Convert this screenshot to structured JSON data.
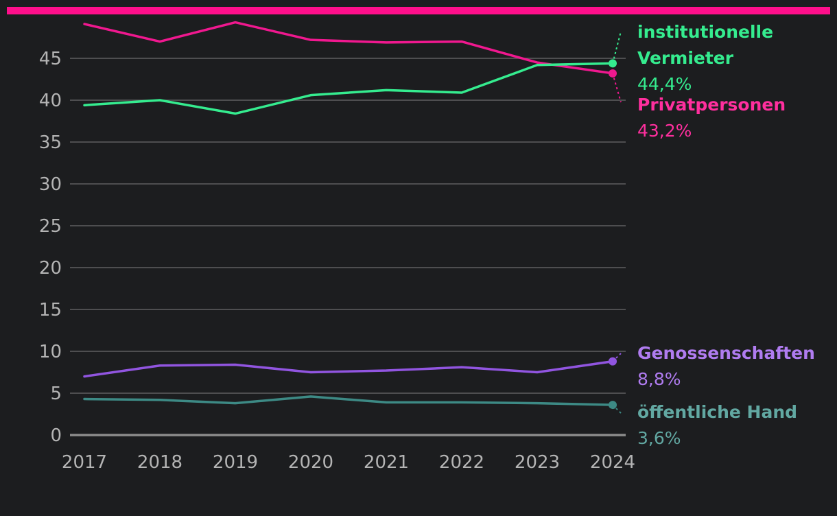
{
  "chart_data": {
    "type": "line",
    "accent_bar_color": "#ff0f8b",
    "x": [
      "2017",
      "2018",
      "2019",
      "2020",
      "2021",
      "2022",
      "2023",
      "2024"
    ],
    "ylim": [
      0,
      49
    ],
    "yticks": [
      "0",
      "5",
      "10",
      "15",
      "20",
      "25",
      "30",
      "35",
      "40",
      "45"
    ],
    "grid": true,
    "series": [
      {
        "key": "privat",
        "name": "Privatpersonen",
        "name_lines": [
          "Privatpersonen"
        ],
        "value_label": "43,2%",
        "color": "#f0188f",
        "label_color": "#ff2f9e",
        "values": [
          49.1,
          47.0,
          49.3,
          47.2,
          46.9,
          47.0,
          44.5,
          43.2
        ]
      },
      {
        "key": "institutionell",
        "name": "institutionelle Vermieter",
        "name_lines": [
          "institutionelle",
          "Vermieter"
        ],
        "value_label": "44,4%",
        "color": "#35ec8f",
        "label_color": "#35ec8f",
        "values": [
          39.4,
          40.0,
          38.4,
          40.6,
          41.2,
          40.9,
          44.2,
          44.4
        ]
      },
      {
        "key": "genossenschaften",
        "name": "Genossenschaften",
        "name_lines": [
          "Genossenschaften"
        ],
        "value_label": "8,8%",
        "color": "#9155e0",
        "label_color": "#b07cf0",
        "values": [
          7.0,
          8.3,
          8.4,
          7.5,
          7.7,
          8.1,
          7.5,
          8.8
        ]
      },
      {
        "key": "oeffentlich",
        "name": "öffentliche Hand",
        "name_lines": [
          "öffentliche Hand"
        ],
        "value_label": "3,6%",
        "color": "#3d8a85",
        "label_color": "#62a8a2",
        "values": [
          4.3,
          4.2,
          3.8,
          4.6,
          3.9,
          3.9,
          3.8,
          3.6
        ]
      }
    ]
  }
}
